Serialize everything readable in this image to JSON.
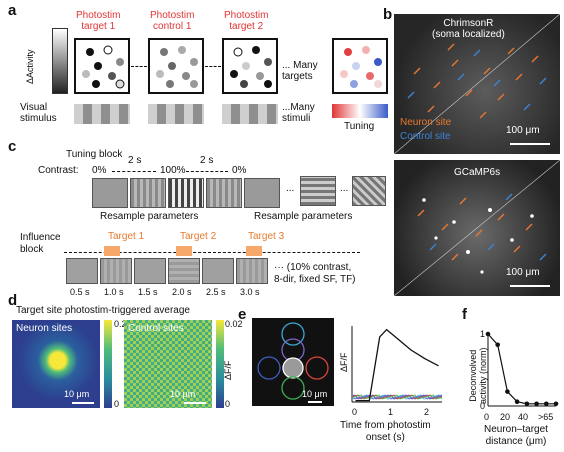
{
  "panels": {
    "a": "a",
    "b": "b",
    "c": "c",
    "d": "d",
    "e": "e",
    "f": "f"
  },
  "panel_a": {
    "ylabel": "ΔActivity",
    "targets": [
      "Photostim\ntarget 1",
      "Photostim\ncontrol 1",
      "Photostim\ntarget 2"
    ],
    "many_targets": "... Many\ntargets",
    "visual_stimulus": "Visual\nstimulus",
    "many_stimuli": "...Many\nstimuli",
    "tuning": "Tuning"
  },
  "panel_b": {
    "top_title": "ChrimsonR\n(soma localized)",
    "neuron_site": "Neuron site",
    "control_site": "Control site",
    "scale_top": "100 μm",
    "bottom_title": "GCaMP6s",
    "scale_bottom": "100 μm"
  },
  "panel_c": {
    "tuning_block": "Tuning block",
    "contrast": "Contrast:",
    "c0": "0%",
    "c100": "100%",
    "c0b": "0%",
    "dur1": "2 s",
    "dur2": "2 s",
    "dots": "...",
    "resample1": "Resample parameters",
    "resample2": "Resample parameters",
    "influence_block": "Influence\nblock",
    "target1": "Target 1",
    "target2": "Target 2",
    "target3": "Target 3",
    "times": [
      "0.5 s",
      "1.0 s",
      "1.5 s",
      "2.0 s",
      "2.5 s",
      "3.0 s"
    ],
    "note": "··· (10% contrast,\n8-dir, fixed SF, TF)"
  },
  "panel_d": {
    "title": "Target site photostim-triggered average",
    "neuron_sites": "Neuron sites",
    "control_sites": "Control sites",
    "cb1_max": "0.2",
    "cb1_min": "0",
    "cb2_max": "0.02",
    "cb2_min": "0",
    "cb_label": "ΔF/F",
    "scale1": "10 μm",
    "scale2": "10 μm"
  },
  "panel_e": {
    "scale": "10 μm",
    "ylabel": "ΔF/F",
    "xlabel": "Time from photostim\nonset (s)",
    "ticks": [
      "0",
      "1",
      "2"
    ]
  },
  "panel_f": {
    "ylabel": "Deconvolved\nactivity (norm)",
    "xlabel": "Neuron–target\ndistance (μm)",
    "xticks": [
      "0",
      "20",
      "40",
      ">65"
    ],
    "yticks": [
      "0",
      "1"
    ]
  },
  "chart_data": [
    {
      "type": "line",
      "xlabel": "Time from photostim onset (s)",
      "ylabel": "ΔF/F",
      "x": [
        -0.4,
        0,
        0.3,
        0.5,
        0.8,
        1.2,
        1.6,
        2.0
      ],
      "series": [
        {
          "values": [
            0.02,
            0.02,
            0.9,
            1.0,
            0.88,
            0.72,
            0.6,
            0.5
          ]
        }
      ]
    },
    {
      "type": "line",
      "xlabel": "Neuron–target distance (μm)",
      "ylabel": "Deconvolved activity (norm)",
      "categories": [
        "0",
        "5",
        "10",
        "20",
        "30",
        "40",
        "50",
        ">65"
      ],
      "values": [
        1.0,
        0.85,
        0.2,
        0.06,
        0.03,
        0.03,
        0.03,
        0.03
      ],
      "ylim": [
        0,
        1
      ]
    }
  ],
  "colors": {
    "red": "#e03535",
    "orange": "#e7792e",
    "blue": "#3b83d6"
  }
}
